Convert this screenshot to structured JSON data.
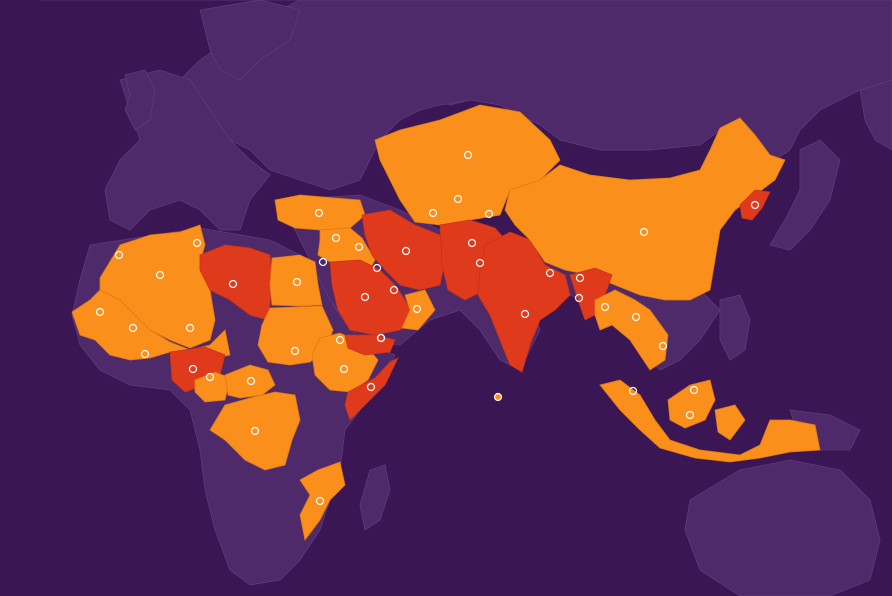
{
  "colors": {
    "ocean": "#3b1655",
    "land": "#4f2a6b",
    "border": "#5e3a7a",
    "level_high": "#fb8f1b",
    "level_extreme": "#e03a1c",
    "marker": "#ffffff"
  },
  "legend": {},
  "regions": [
    {
      "name": "north-africa-west",
      "level": "high"
    },
    {
      "name": "libya",
      "level": "extreme"
    },
    {
      "name": "egypt",
      "level": "high"
    },
    {
      "name": "sahel",
      "level": "high"
    },
    {
      "name": "nigeria",
      "level": "extreme"
    },
    {
      "name": "central-africa",
      "level": "high"
    },
    {
      "name": "sudan",
      "level": "high"
    },
    {
      "name": "ethiopia",
      "level": "high"
    },
    {
      "name": "somalia",
      "level": "extreme"
    },
    {
      "name": "mozambique",
      "level": "high"
    },
    {
      "name": "turkey",
      "level": "high"
    },
    {
      "name": "levant",
      "level": "high"
    },
    {
      "name": "arabia",
      "level": "extreme"
    },
    {
      "name": "yemen",
      "level": "extreme"
    },
    {
      "name": "oman",
      "level": "high"
    },
    {
      "name": "iran",
      "level": "extreme"
    },
    {
      "name": "central-asia",
      "level": "high"
    },
    {
      "name": "afghanistan-pakistan",
      "level": "extreme"
    },
    {
      "name": "india",
      "level": "extreme"
    },
    {
      "name": "china",
      "level": "high"
    },
    {
      "name": "north-korea",
      "level": "extreme"
    },
    {
      "name": "myanmar",
      "level": "extreme"
    },
    {
      "name": "southeast-asia",
      "level": "high"
    },
    {
      "name": "indonesia",
      "level": "high"
    }
  ],
  "markers": [
    {
      "name": "marker-morocco"
    },
    {
      "name": "marker-algeria"
    },
    {
      "name": "marker-tunisia"
    },
    {
      "name": "marker-libya"
    },
    {
      "name": "marker-egypt"
    },
    {
      "name": "marker-mauritania"
    },
    {
      "name": "marker-mali"
    },
    {
      "name": "marker-niger"
    },
    {
      "name": "marker-burkina-faso"
    },
    {
      "name": "marker-nigeria"
    },
    {
      "name": "marker-benin"
    },
    {
      "name": "marker-cameroon"
    },
    {
      "name": "marker-car"
    },
    {
      "name": "marker-drc"
    },
    {
      "name": "marker-sudan"
    },
    {
      "name": "marker-eritrea"
    },
    {
      "name": "marker-ethiopia"
    },
    {
      "name": "marker-somalia"
    },
    {
      "name": "marker-kenya"
    },
    {
      "name": "marker-mozambique"
    },
    {
      "name": "marker-turkey"
    },
    {
      "name": "marker-syria"
    },
    {
      "name": "marker-iraq"
    },
    {
      "name": "marker-palestine"
    },
    {
      "name": "marker-jordan"
    },
    {
      "name": "marker-saudi-arabia"
    },
    {
      "name": "marker-qatar"
    },
    {
      "name": "marker-oman"
    },
    {
      "name": "marker-yemen"
    },
    {
      "name": "marker-iran"
    },
    {
      "name": "marker-kazakhstan"
    },
    {
      "name": "marker-uzbekistan"
    },
    {
      "name": "marker-turkmenistan"
    },
    {
      "name": "marker-kyrgyzstan"
    },
    {
      "name": "marker-afghanistan"
    },
    {
      "name": "marker-pakistan"
    },
    {
      "name": "marker-india"
    },
    {
      "name": "marker-nepal"
    },
    {
      "name": "marker-bhutan"
    },
    {
      "name": "marker-bangladesh"
    },
    {
      "name": "marker-myanmar"
    },
    {
      "name": "marker-laos"
    },
    {
      "name": "marker-vietnam"
    },
    {
      "name": "marker-china"
    },
    {
      "name": "marker-north-korea"
    },
    {
      "name": "marker-malaysia"
    },
    {
      "name": "marker-brunei"
    },
    {
      "name": "marker-indonesia"
    },
    {
      "name": "marker-maldives"
    }
  ]
}
